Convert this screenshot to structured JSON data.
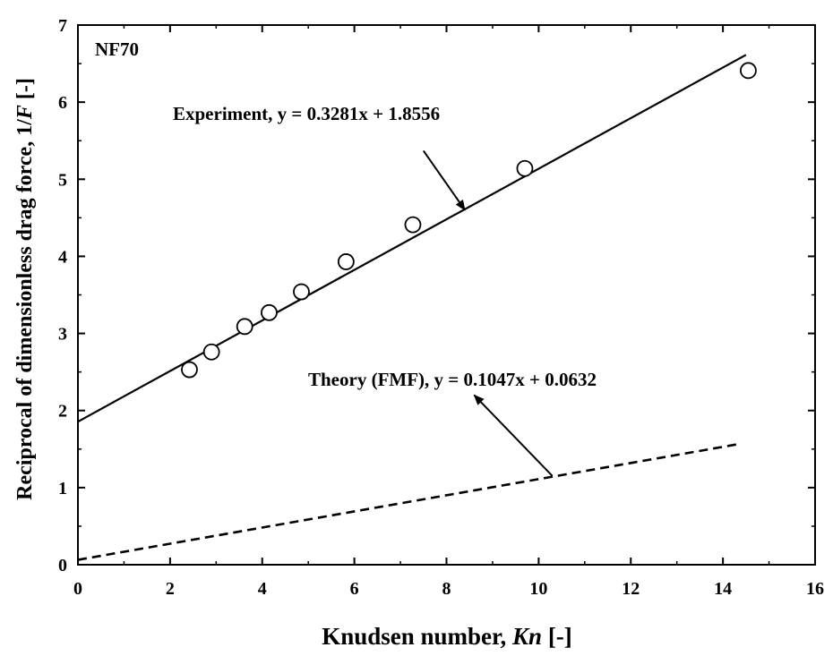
{
  "chart_data": {
    "type": "scatter",
    "panel_label": "NF70",
    "xlabel": {
      "text": "Knudsen number, ",
      "italic": "Kn",
      "suffix": " [-]"
    },
    "ylabel": {
      "text": "Reciprocal of dimensionless drag force, 1/",
      "italic": "F",
      "suffix": " [-]"
    },
    "xlim": [
      0,
      16
    ],
    "ylim": [
      0,
      7
    ],
    "xticks": [
      0,
      2,
      4,
      6,
      8,
      10,
      12,
      14,
      16
    ],
    "yticks": [
      0,
      1,
      2,
      3,
      4,
      5,
      6,
      7
    ],
    "grid": false,
    "series": [
      {
        "kind": "markers",
        "marker": "open-circle",
        "color": "#000000",
        "x": [
          2.42,
          2.9,
          3.62,
          4.15,
          4.85,
          5.82,
          7.27,
          9.7,
          14.55
        ],
        "y": [
          2.53,
          2.76,
          3.09,
          3.27,
          3.54,
          3.93,
          4.41,
          5.14,
          6.41
        ]
      },
      {
        "kind": "line",
        "style": "solid",
        "color": "#000000",
        "label": "Experiment, y = 0.3281x + 1.8556",
        "slope": 0.3281,
        "intercept": 1.8556,
        "x_range": [
          0,
          14.5
        ]
      },
      {
        "kind": "line",
        "style": "dashed",
        "color": "#000000",
        "label": "Theory (FMF), y = 0.1047x + 0.0632",
        "slope": 0.1047,
        "intercept": 0.0632,
        "x_range": [
          0,
          14.3
        ]
      }
    ],
    "annotations": [
      {
        "text_of": 1,
        "arrow_from": [
          7.5,
          5.37
        ],
        "arrow_to": [
          8.4,
          4.6
        ]
      },
      {
        "text_of": 2,
        "arrow_from": [
          10.3,
          1.15
        ],
        "arrow_to": [
          8.6,
          2.2
        ]
      }
    ]
  }
}
